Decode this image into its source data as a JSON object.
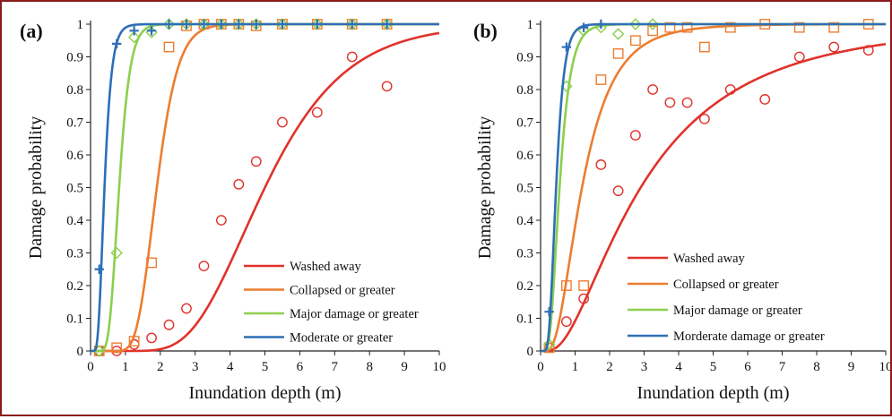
{
  "chart_data": [
    {
      "type": "line",
      "panel_label": "(a)",
      "xlabel": "Inundation depth (m)",
      "ylabel": "Damage probability",
      "xlim": [
        0,
        10
      ],
      "ylim": [
        0,
        1
      ],
      "xticks": [
        "0",
        "1",
        "2",
        "3",
        "4",
        "5",
        "6",
        "7",
        "8",
        "9",
        "10"
      ],
      "yticks": [
        "0",
        "0.1",
        "0.2",
        "0.3",
        "0.4",
        "0.5",
        "0.6",
        "0.7",
        "0.8",
        "0.9",
        "1"
      ],
      "grid": false,
      "legend_position": "bottom-right",
      "series": [
        {
          "name": "Washed away",
          "color": "#e0322c",
          "marker": "circle",
          "curve": {
            "median": 5.0,
            "beta": 0.36
          },
          "points": [
            [
              0.25,
              0.0
            ],
            [
              0.75,
              0.0
            ],
            [
              1.25,
              0.02
            ],
            [
              1.75,
              0.04
            ],
            [
              2.25,
              0.08
            ],
            [
              2.75,
              0.13
            ],
            [
              3.25,
              0.26
            ],
            [
              3.75,
              0.4
            ],
            [
              4.25,
              0.51
            ],
            [
              4.75,
              0.58
            ],
            [
              5.5,
              0.7
            ],
            [
              6.5,
              0.73
            ],
            [
              7.5,
              0.9
            ],
            [
              8.5,
              0.81
            ]
          ]
        },
        {
          "name": "Collapsed or greater",
          "color": "#ed7d31",
          "marker": "square",
          "curve": {
            "median": 1.9,
            "beta": 0.25
          },
          "points": [
            [
              0.25,
              0.0
            ],
            [
              0.75,
              0.01
            ],
            [
              1.25,
              0.03
            ],
            [
              1.75,
              0.27
            ],
            [
              2.25,
              0.93
            ],
            [
              2.75,
              0.995
            ],
            [
              3.25,
              1.0
            ],
            [
              3.75,
              1.0
            ],
            [
              4.25,
              1.0
            ],
            [
              4.75,
              0.995
            ],
            [
              5.5,
              1.0
            ],
            [
              6.5,
              1.0
            ],
            [
              7.5,
              1.0
            ],
            [
              8.5,
              1.0
            ]
          ]
        },
        {
          "name": "Major damage or greater",
          "color": "#8ccf4d",
          "marker": "diamond",
          "curve": {
            "median": 0.82,
            "beta": 0.3
          },
          "points": [
            [
              0.25,
              0.0
            ],
            [
              0.75,
              0.3
            ],
            [
              1.25,
              0.96
            ],
            [
              1.75,
              0.975
            ],
            [
              2.25,
              1.0
            ],
            [
              2.75,
              1.0
            ],
            [
              3.25,
              1.0
            ],
            [
              3.75,
              1.0
            ],
            [
              4.25,
              1.0
            ],
            [
              4.75,
              1.0
            ],
            [
              5.5,
              1.0
            ],
            [
              6.5,
              1.0
            ],
            [
              7.5,
              1.0
            ],
            [
              8.5,
              1.0
            ]
          ]
        },
        {
          "name": "Moderate or greater",
          "color": "#2e6fb7",
          "marker": "plus",
          "curve": {
            "median": 0.4,
            "beta": 0.4
          },
          "points": [
            [
              0.25,
              0.25
            ],
            [
              0.75,
              0.94
            ],
            [
              1.25,
              0.98
            ],
            [
              1.75,
              0.98
            ],
            [
              2.25,
              1.0
            ],
            [
              2.75,
              1.0
            ],
            [
              3.25,
              1.0
            ],
            [
              3.75,
              1.0
            ],
            [
              4.25,
              1.0
            ],
            [
              4.75,
              1.0
            ],
            [
              5.5,
              1.0
            ],
            [
              6.5,
              1.0
            ],
            [
              7.5,
              1.0
            ],
            [
              8.5,
              1.0
            ]
          ]
        }
      ]
    },
    {
      "type": "line",
      "panel_label": "(b)",
      "xlabel": "Inundation depth (m)",
      "ylabel": "Damage probability",
      "xlim": [
        0,
        10
      ],
      "ylim": [
        0,
        1
      ],
      "xticks": [
        "0",
        "1",
        "2",
        "3",
        "4",
        "5",
        "6",
        "7",
        "8",
        "9",
        "10"
      ],
      "yticks": [
        "0",
        "0.1",
        "0.2",
        "0.3",
        "0.4",
        "0.5",
        "0.6",
        "0.7",
        "0.8",
        "0.9",
        "1"
      ],
      "grid": false,
      "legend_position": "bottom-right",
      "series": [
        {
          "name": "Washed away",
          "color": "#e0322c",
          "marker": "circle",
          "curve": {
            "median": 2.9,
            "beta": 0.8
          },
          "points": [
            [
              0.25,
              0.01
            ],
            [
              0.75,
              0.09
            ],
            [
              1.25,
              0.16
            ],
            [
              1.75,
              0.57
            ],
            [
              2.25,
              0.49
            ],
            [
              2.75,
              0.66
            ],
            [
              3.25,
              0.8
            ],
            [
              3.75,
              0.76
            ],
            [
              4.25,
              0.76
            ],
            [
              4.75,
              0.71
            ],
            [
              5.5,
              0.8
            ],
            [
              6.5,
              0.77
            ],
            [
              7.5,
              0.9
            ],
            [
              8.5,
              0.93
            ],
            [
              9.5,
              0.92
            ]
          ]
        },
        {
          "name": "Collapsed or greater",
          "color": "#ed7d31",
          "marker": "square",
          "curve": {
            "median": 1.2,
            "beta": 0.6
          },
          "points": [
            [
              0.25,
              0.01
            ],
            [
              0.75,
              0.2
            ],
            [
              1.25,
              0.2
            ],
            [
              1.75,
              0.83
            ],
            [
              2.25,
              0.91
            ],
            [
              2.75,
              0.95
            ],
            [
              3.25,
              0.98
            ],
            [
              3.75,
              0.99
            ],
            [
              4.25,
              0.99
            ],
            [
              4.75,
              0.93
            ],
            [
              5.5,
              0.99
            ],
            [
              6.5,
              1.0
            ],
            [
              7.5,
              0.99
            ],
            [
              8.5,
              0.99
            ],
            [
              9.5,
              1.0
            ]
          ]
        },
        {
          "name": "Major damage or greater",
          "color": "#8ccf4d",
          "marker": "diamond",
          "curve": {
            "median": 0.55,
            "beta": 0.45
          },
          "points": [
            [
              0.25,
              0.02
            ],
            [
              0.75,
              0.81
            ],
            [
              1.25,
              0.98
            ],
            [
              1.75,
              0.99
            ],
            [
              2.25,
              0.97
            ],
            [
              2.75,
              1.0
            ],
            [
              3.25,
              1.0
            ]
          ]
        },
        {
          "name": "Morderate damage or greater",
          "color": "#2e6fb7",
          "marker": "plus",
          "curve": {
            "median": 0.45,
            "beta": 0.4
          },
          "points": [
            [
              0.25,
              0.12
            ],
            [
              0.75,
              0.93
            ],
            [
              1.25,
              0.99
            ],
            [
              1.75,
              1.0
            ]
          ]
        }
      ]
    }
  ]
}
